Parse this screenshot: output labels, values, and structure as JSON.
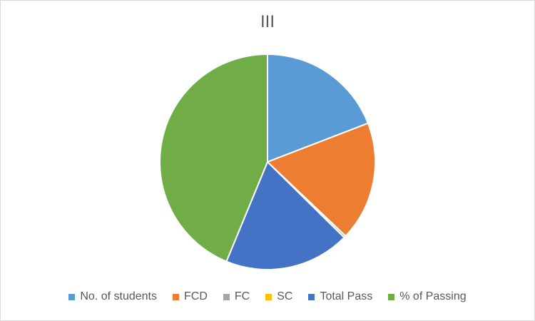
{
  "chart_data": {
    "type": "pie",
    "title": "III",
    "categories": [
      "No. of students",
      "FCD",
      "FC",
      "SC",
      "Total Pass",
      "% of Passing"
    ],
    "values": [
      63,
      59,
      1,
      0,
      62,
      144
    ],
    "colors": [
      "#5b9bd5",
      "#ed7d31",
      "#a5a5a5",
      "#ffc000",
      "#4472c4",
      "#70ad47"
    ],
    "legend_position": "bottom"
  }
}
